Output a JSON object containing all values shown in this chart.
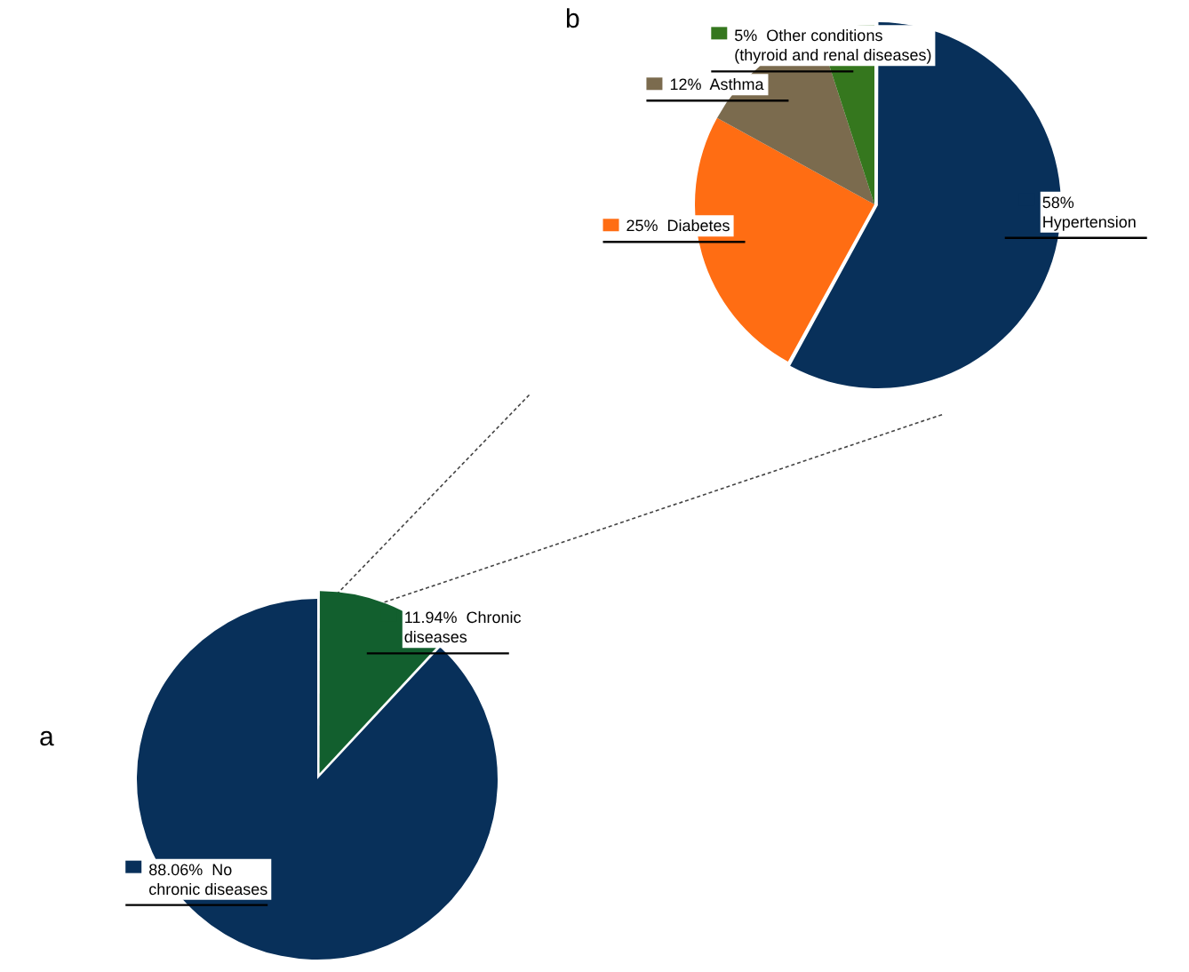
{
  "chart_data": [
    {
      "type": "pie",
      "title": "a",
      "categories": [
        "Chronic diseases",
        "No chronic diseases"
      ],
      "values": [
        11.94,
        88.06
      ],
      "colors": [
        "#125f2e",
        "#08305a"
      ],
      "value_labels": [
        "11.94%",
        "88.06%"
      ],
      "legend": "bottom left"
    },
    {
      "type": "pie",
      "title": "b",
      "categories": [
        "Hypertension",
        "Diabetes",
        "Asthma",
        "Other conditions (thyroid and renal diseases)"
      ],
      "values": [
        58,
        25,
        12,
        5
      ],
      "colors": [
        "#08305a",
        "#ff6d13",
        "#7b6b4e",
        "#35771e"
      ],
      "value_labels": [
        "58%",
        "25%",
        "12%",
        "5%"
      ],
      "legend": "top left"
    }
  ]
}
